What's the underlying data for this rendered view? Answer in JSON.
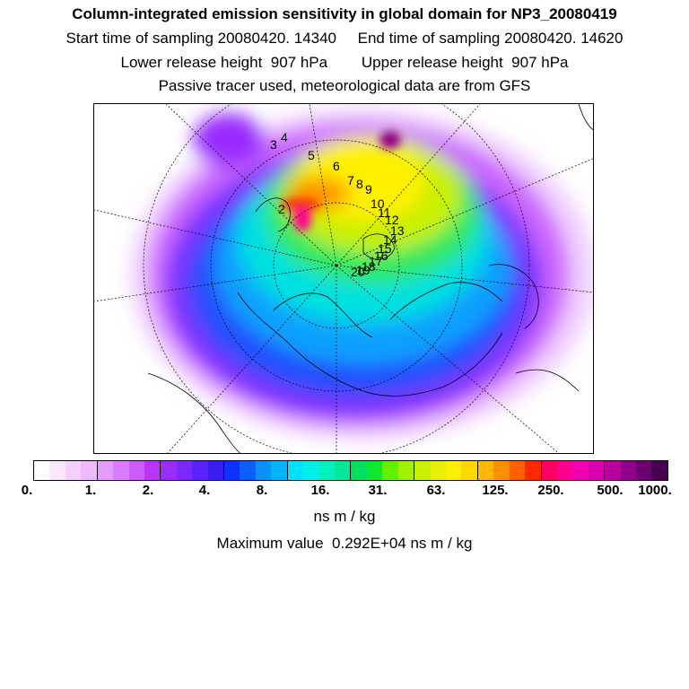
{
  "header": {
    "title": "Column-integrated emission sensitivity in global domain for NP3_20080419",
    "start_sampling": "Start time of sampling 20080420. 14340",
    "end_sampling": "End time of sampling 20080420. 14620",
    "lower_release": "Lower release height  907 hPa",
    "upper_release": "Upper release height  907 hPa",
    "tracer_note": "Passive tracer used, meteorological data are from GFS"
  },
  "map": {
    "trajectory_labels": [
      "2",
      "3",
      "4",
      "5",
      "6",
      "7",
      "8",
      "9",
      "10",
      "11",
      "12",
      "13",
      "14",
      "15",
      "16",
      "17",
      "18",
      "19",
      "20"
    ]
  },
  "colorbar": {
    "colors": [
      "#ffffff",
      "#fbe8ff",
      "#f5d0ff",
      "#f0b8ff",
      "#e59cff",
      "#d97cff",
      "#cc5cff",
      "#bb33ff",
      "#9a2cff",
      "#7a28ff",
      "#5a22ff",
      "#3a1cf0",
      "#1030ff",
      "#0a60ff",
      "#0a90ff",
      "#00b4ff",
      "#00e0ff",
      "#00f0e8",
      "#00f0c0",
      "#00e89a",
      "#00e060",
      "#10e830",
      "#60f000",
      "#a0f000",
      "#c8f000",
      "#e6f000",
      "#fff000",
      "#ffd800",
      "#ffb800",
      "#ff9000",
      "#ff6000",
      "#ff2800",
      "#ff0060",
      "#ff0090",
      "#f000b0",
      "#d800b0",
      "#b8009c",
      "#900088",
      "#6c0070",
      "#480050"
    ],
    "ticks": [
      "0.",
      "1.",
      "2.",
      "4.",
      "8.",
      "16.",
      "31.",
      "63.",
      "125.",
      "250.",
      "500.",
      "1000."
    ],
    "units": "ns m / kg"
  },
  "footer": {
    "max_value": "Maximum value  0.292E+04 ns m / kg"
  }
}
